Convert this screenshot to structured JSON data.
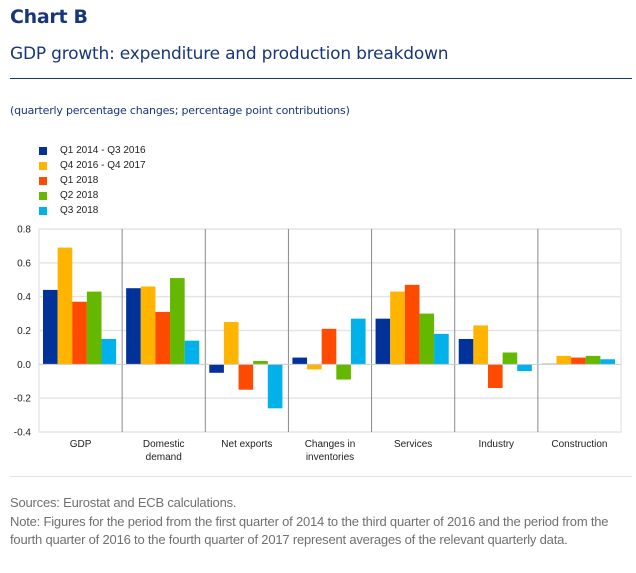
{
  "header": {
    "chart_label": "Chart B",
    "title": "GDP growth: expenditure and production breakdown",
    "subtitle": "(quarterly percentage changes; percentage point contributions)"
  },
  "footer": {
    "sources": "Sources: Eurostat and ECB calculations.",
    "note": "Note: Figures for the period from the first quarter of 2014 to the third quarter of 2016 and the period from the fourth quarter of 2016 to the fourth quarter of 2017 represent averages of the relevant quarterly data."
  },
  "chart_data": {
    "type": "bar",
    "title": "GDP growth: expenditure and production breakdown",
    "subtitle": "(quarterly percentage changes; percentage point contributions)",
    "xlabel": "",
    "ylabel": "",
    "ylim": [
      -0.4,
      0.8
    ],
    "yticks": [
      0.8,
      0.6,
      0.4,
      0.2,
      0.0,
      -0.2,
      -0.4
    ],
    "ytick_labels": [
      "0.8",
      "0.6",
      "0.4",
      "0.2",
      "0.0",
      "-0.2",
      "-0.4"
    ],
    "grid": true,
    "legend_position": "top-left",
    "categories": [
      [
        "GDP"
      ],
      [
        "Domestic",
        "demand"
      ],
      [
        "Net exports"
      ],
      [
        "Changes in",
        "inventories"
      ],
      [
        "Services"
      ],
      [
        "Industry"
      ],
      [
        "Construction"
      ]
    ],
    "series": [
      {
        "name": "Q1 2014 - Q3 2016",
        "color": "#003299",
        "values": [
          0.44,
          0.45,
          -0.05,
          0.04,
          0.27,
          0.15,
          0.005
        ]
      },
      {
        "name": "Q4 2016 - Q4 2017",
        "color": "#FFB400",
        "values": [
          0.69,
          0.46,
          0.25,
          -0.03,
          0.43,
          0.23,
          0.05
        ]
      },
      {
        "name": "Q1 2018",
        "color": "#FF4B00",
        "values": [
          0.37,
          0.31,
          -0.15,
          0.21,
          0.47,
          -0.14,
          0.04
        ]
      },
      {
        "name": "Q2 2018",
        "color": "#65B800",
        "values": [
          0.43,
          0.51,
          0.02,
          -0.09,
          0.3,
          0.07,
          0.05
        ]
      },
      {
        "name": "Q3 2018",
        "color": "#00B1EA",
        "values": [
          0.15,
          0.14,
          -0.26,
          0.27,
          0.18,
          -0.04,
          0.03
        ]
      }
    ]
  }
}
